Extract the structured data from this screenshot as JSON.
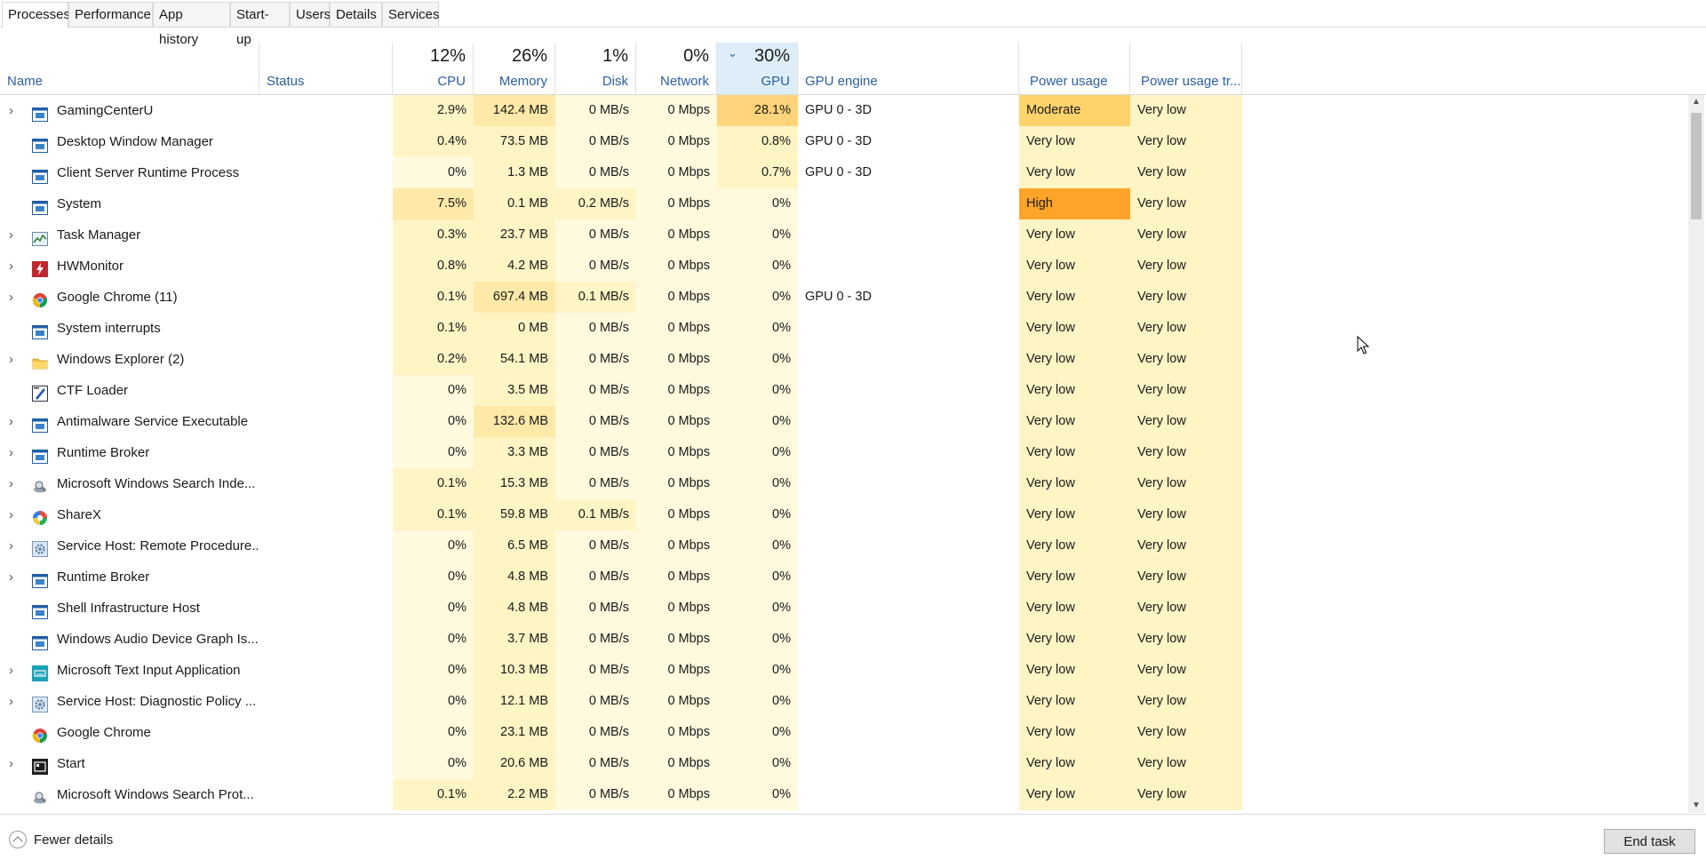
{
  "tabs": [
    {
      "label": "Processes",
      "active": true
    },
    {
      "label": "Performance",
      "active": false
    },
    {
      "label": "App history",
      "active": false
    },
    {
      "label": "Start-up",
      "active": false
    },
    {
      "label": "Users",
      "active": false
    },
    {
      "label": "Details",
      "active": false
    },
    {
      "label": "Services",
      "active": false
    }
  ],
  "columns": {
    "name": "Name",
    "status": "Status",
    "cpu": {
      "label": "CPU",
      "total": "12%"
    },
    "memory": {
      "label": "Memory",
      "total": "26%"
    },
    "disk": {
      "label": "Disk",
      "total": "1%"
    },
    "network": {
      "label": "Network",
      "total": "0%"
    },
    "gpu": {
      "label": "GPU",
      "total": "30%"
    },
    "gpu_engine": "GPU engine",
    "power": "Power usage",
    "power_trend": "Power usage tr..."
  },
  "processes": [
    {
      "name": "GamingCenterU",
      "expandable": true,
      "icon": "app-window-icon",
      "cpu": "2.9%",
      "memory": "142.4 MB",
      "disk": "0 MB/s",
      "network": "0 Mbps",
      "gpu": "28.1%",
      "gpu_engine": "GPU 0 - 3D",
      "power": "Moderate",
      "power_trend": "Very low"
    },
    {
      "name": "Desktop Window Manager",
      "expandable": false,
      "icon": "app-window-icon",
      "cpu": "0.4%",
      "memory": "73.5 MB",
      "disk": "0 MB/s",
      "network": "0 Mbps",
      "gpu": "0.8%",
      "gpu_engine": "GPU 0 - 3D",
      "power": "Very low",
      "power_trend": "Very low"
    },
    {
      "name": "Client Server Runtime Process",
      "expandable": false,
      "icon": "app-window-icon",
      "cpu": "0%",
      "memory": "1.3 MB",
      "disk": "0 MB/s",
      "network": "0 Mbps",
      "gpu": "0.7%",
      "gpu_engine": "GPU 0 - 3D",
      "power": "Very low",
      "power_trend": "Very low"
    },
    {
      "name": "System",
      "expandable": false,
      "icon": "app-window-icon",
      "cpu": "7.5%",
      "memory": "0.1 MB",
      "disk": "0.2 MB/s",
      "network": "0 Mbps",
      "gpu": "0%",
      "gpu_engine": "",
      "power": "High",
      "power_trend": "Very low"
    },
    {
      "name": "Task Manager",
      "expandable": true,
      "icon": "task-manager-icon",
      "cpu": "0.3%",
      "memory": "23.7 MB",
      "disk": "0 MB/s",
      "network": "0 Mbps",
      "gpu": "0%",
      "gpu_engine": "",
      "power": "Very low",
      "power_trend": "Very low"
    },
    {
      "name": "HWMonitor",
      "expandable": true,
      "icon": "hwmonitor-icon",
      "cpu": "0.8%",
      "memory": "4.2 MB",
      "disk": "0 MB/s",
      "network": "0 Mbps",
      "gpu": "0%",
      "gpu_engine": "",
      "power": "Very low",
      "power_trend": "Very low"
    },
    {
      "name": "Google Chrome (11)",
      "expandable": true,
      "icon": "chrome-icon",
      "cpu": "0.1%",
      "memory": "697.4 MB",
      "disk": "0.1 MB/s",
      "network": "0 Mbps",
      "gpu": "0%",
      "gpu_engine": "GPU 0 - 3D",
      "power": "Very low",
      "power_trend": "Very low"
    },
    {
      "name": "System interrupts",
      "expandable": false,
      "icon": "app-window-icon",
      "cpu": "0.1%",
      "memory": "0 MB",
      "disk": "0 MB/s",
      "network": "0 Mbps",
      "gpu": "0%",
      "gpu_engine": "",
      "power": "Very low",
      "power_trend": "Very low"
    },
    {
      "name": "Windows Explorer (2)",
      "expandable": true,
      "icon": "folder-icon",
      "cpu": "0.2%",
      "memory": "54.1 MB",
      "disk": "0 MB/s",
      "network": "0 Mbps",
      "gpu": "0%",
      "gpu_engine": "",
      "power": "Very low",
      "power_trend": "Very low"
    },
    {
      "name": "CTF Loader",
      "expandable": false,
      "icon": "ctf-loader-icon",
      "cpu": "0%",
      "memory": "3.5 MB",
      "disk": "0 MB/s",
      "network": "0 Mbps",
      "gpu": "0%",
      "gpu_engine": "",
      "power": "Very low",
      "power_trend": "Very low"
    },
    {
      "name": "Antimalware Service Executable",
      "expandable": true,
      "icon": "app-window-icon",
      "cpu": "0%",
      "memory": "132.6 MB",
      "disk": "0 MB/s",
      "network": "0 Mbps",
      "gpu": "0%",
      "gpu_engine": "",
      "power": "Very low",
      "power_trend": "Very low"
    },
    {
      "name": "Runtime Broker",
      "expandable": true,
      "icon": "app-window-icon",
      "cpu": "0%",
      "memory": "3.3 MB",
      "disk": "0 MB/s",
      "network": "0 Mbps",
      "gpu": "0%",
      "gpu_engine": "",
      "power": "Very low",
      "power_trend": "Very low"
    },
    {
      "name": "Microsoft Windows Search Inde...",
      "expandable": true,
      "icon": "search-indexer-icon",
      "cpu": "0.1%",
      "memory": "15.3 MB",
      "disk": "0 MB/s",
      "network": "0 Mbps",
      "gpu": "0%",
      "gpu_engine": "",
      "power": "Very low",
      "power_trend": "Very low"
    },
    {
      "name": "ShareX",
      "expandable": true,
      "icon": "sharex-icon",
      "cpu": "0.1%",
      "memory": "59.8 MB",
      "disk": "0.1 MB/s",
      "network": "0 Mbps",
      "gpu": "0%",
      "gpu_engine": "",
      "power": "Very low",
      "power_trend": "Very low"
    },
    {
      "name": "Service Host: Remote Procedure...",
      "expandable": true,
      "icon": "gear-icon",
      "cpu": "0%",
      "memory": "6.5 MB",
      "disk": "0 MB/s",
      "network": "0 Mbps",
      "gpu": "0%",
      "gpu_engine": "",
      "power": "Very low",
      "power_trend": "Very low"
    },
    {
      "name": "Runtime Broker",
      "expandable": true,
      "icon": "app-window-icon",
      "cpu": "0%",
      "memory": "4.8 MB",
      "disk": "0 MB/s",
      "network": "0 Mbps",
      "gpu": "0%",
      "gpu_engine": "",
      "power": "Very low",
      "power_trend": "Very low"
    },
    {
      "name": "Shell Infrastructure Host",
      "expandable": false,
      "icon": "app-window-icon",
      "cpu": "0%",
      "memory": "4.8 MB",
      "disk": "0 MB/s",
      "network": "0 Mbps",
      "gpu": "0%",
      "gpu_engine": "",
      "power": "Very low",
      "power_trend": "Very low"
    },
    {
      "name": "Windows Audio Device Graph Is...",
      "expandable": false,
      "icon": "app-window-icon",
      "cpu": "0%",
      "memory": "3.7 MB",
      "disk": "0 MB/s",
      "network": "0 Mbps",
      "gpu": "0%",
      "gpu_engine": "",
      "power": "Very low",
      "power_trend": "Very low"
    },
    {
      "name": "Microsoft Text Input Application",
      "expandable": true,
      "icon": "text-input-icon",
      "cpu": "0%",
      "memory": "10.3 MB",
      "disk": "0 MB/s",
      "network": "0 Mbps",
      "gpu": "0%",
      "gpu_engine": "",
      "power": "Very low",
      "power_trend": "Very low"
    },
    {
      "name": "Service Host: Diagnostic Policy ...",
      "expandable": true,
      "icon": "gear-icon",
      "cpu": "0%",
      "memory": "12.1 MB",
      "disk": "0 MB/s",
      "network": "0 Mbps",
      "gpu": "0%",
      "gpu_engine": "",
      "power": "Very low",
      "power_trend": "Very low"
    },
    {
      "name": "Google Chrome",
      "expandable": false,
      "icon": "chrome-icon",
      "cpu": "0%",
      "memory": "23.1 MB",
      "disk": "0 MB/s",
      "network": "0 Mbps",
      "gpu": "0%",
      "gpu_engine": "",
      "power": "Very low",
      "power_trend": "Very low"
    },
    {
      "name": "Start",
      "expandable": true,
      "icon": "start-icon",
      "cpu": "0%",
      "memory": "20.6 MB",
      "disk": "0 MB/s",
      "network": "0 Mbps",
      "gpu": "0%",
      "gpu_engine": "",
      "power": "Very low",
      "power_trend": "Very low"
    },
    {
      "name": "Microsoft Windows Search Prot...",
      "expandable": false,
      "icon": "search-indexer-icon",
      "cpu": "0.1%",
      "memory": "2.2 MB",
      "disk": "0 MB/s",
      "network": "0 Mbps",
      "gpu": "0%",
      "gpu_engine": "",
      "power": "Very low",
      "power_trend": "Very low"
    }
  ],
  "footer": {
    "fewer_details": "Fewer details",
    "end_task": "End task"
  },
  "colors": {
    "heat_light": "#fff9de",
    "heat_base": "#fff4c4",
    "heat_mid": "#ffe9a8",
    "heat_warm": "#ffd47a",
    "heat_hot": "#ffa42a",
    "header_link": "#2c5f9e",
    "sorted_header": "#ddeefa"
  }
}
